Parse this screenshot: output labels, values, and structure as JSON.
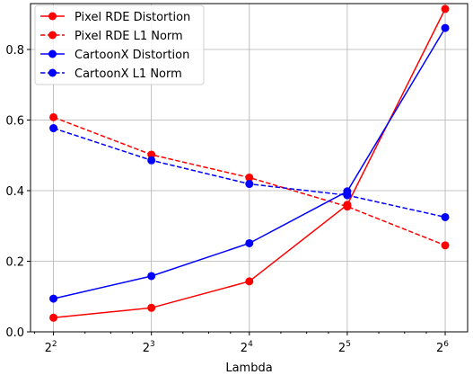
{
  "chart_data": {
    "type": "line",
    "xlabel": "Lambda",
    "ylabel": "",
    "title": "",
    "x": [
      4,
      8,
      16,
      32,
      64
    ],
    "x_scale": "log2",
    "x_tick_labels": [
      {
        "base": "2",
        "exp": "2"
      },
      {
        "base": "2",
        "exp": "3"
      },
      {
        "base": "2",
        "exp": "4"
      },
      {
        "base": "2",
        "exp": "5"
      },
      {
        "base": "2",
        "exp": "6"
      }
    ],
    "xlim": [
      3.4,
      75
    ],
    "ylim": [
      0,
      0.93
    ],
    "y_ticks": [
      "0.0",
      "0.2",
      "0.4",
      "0.6",
      "0.8"
    ],
    "grid": true,
    "legend_position": "top-left",
    "series": [
      {
        "name": "Pixel RDE Distortion",
        "color": "#ff0000",
        "linestyle": "solid",
        "marker": "circle",
        "values": [
          0.04,
          0.068,
          0.143,
          0.36,
          0.915
        ]
      },
      {
        "name": "Pixel RDE L1 Norm",
        "color": "#ff0000",
        "linestyle": "dashed",
        "marker": "circle",
        "values": [
          0.608,
          0.502,
          0.437,
          0.355,
          0.245
        ]
      },
      {
        "name": "CartoonX Distortion",
        "color": "#0000ff",
        "linestyle": "solid",
        "marker": "circle",
        "values": [
          0.094,
          0.158,
          0.251,
          0.398,
          0.861
        ]
      },
      {
        "name": "CartoonX L1 Norm",
        "color": "#0000ff",
        "linestyle": "dashed",
        "marker": "circle",
        "values": [
          0.577,
          0.486,
          0.419,
          0.387,
          0.325
        ]
      }
    ]
  }
}
